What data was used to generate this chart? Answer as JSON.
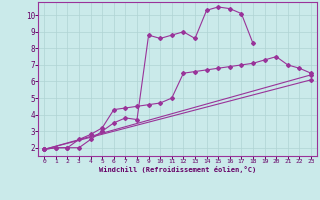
{
  "background_color": "#caeaea",
  "grid_color": "#b0d4d4",
  "line_color": "#993399",
  "xlabel": "Windchill (Refroidissement éolien,°C)",
  "xlim": [
    -0.5,
    23.5
  ],
  "ylim": [
    1.5,
    10.8
  ],
  "xticks": [
    0,
    1,
    2,
    3,
    4,
    5,
    6,
    7,
    8,
    9,
    10,
    11,
    12,
    13,
    14,
    15,
    16,
    17,
    18,
    19,
    20,
    21,
    22,
    23
  ],
  "yticks": [
    2,
    3,
    4,
    5,
    6,
    7,
    8,
    9,
    10
  ],
  "line1_x": [
    0,
    1,
    2,
    3,
    4,
    5,
    6,
    7,
    8,
    9,
    10,
    11,
    12,
    13,
    14,
    15,
    16,
    17,
    18
  ],
  "line1_y": [
    1.9,
    2.0,
    2.0,
    2.0,
    2.5,
    3.0,
    3.5,
    3.8,
    3.7,
    8.8,
    8.6,
    8.8,
    9.0,
    8.6,
    10.3,
    10.5,
    10.4,
    10.1,
    8.3
  ],
  "line2_x": [
    0,
    1,
    2,
    3,
    4,
    5,
    6,
    7,
    8,
    9,
    10,
    11,
    12,
    13,
    14,
    15,
    16,
    17,
    18,
    19,
    20,
    21,
    22,
    23
  ],
  "line2_y": [
    1.9,
    2.0,
    2.0,
    2.5,
    2.8,
    3.2,
    4.3,
    4.4,
    4.5,
    4.6,
    4.7,
    5.0,
    6.5,
    6.6,
    6.7,
    6.8,
    6.9,
    7.0,
    7.1,
    7.3,
    7.5,
    7.0,
    6.8,
    6.5
  ],
  "line3_x": [
    0,
    23
  ],
  "line3_y": [
    1.9,
    6.4
  ],
  "line4_x": [
    0,
    23
  ],
  "line4_y": [
    1.9,
    6.1
  ]
}
